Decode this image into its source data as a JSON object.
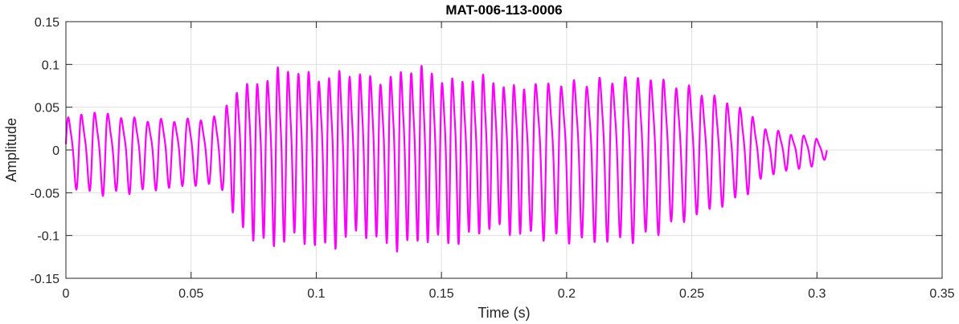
{
  "chart_data": {
    "type": "line",
    "title": "MAT-006-113-0006",
    "xlabel": "Time (s)",
    "ylabel": "Amplitude",
    "xlim": [
      0,
      0.35
    ],
    "ylim": [
      -0.15,
      0.15
    ],
    "grid": true,
    "x_ticks": [
      0,
      0.05,
      0.1,
      0.15,
      0.2,
      0.25,
      0.3,
      0.35
    ],
    "x_tick_labels": [
      "0",
      "0.05",
      "0.1",
      "0.15",
      "0.2",
      "0.25",
      "0.3",
      "0.35"
    ],
    "y_ticks": [
      -0.15,
      -0.1,
      -0.05,
      0,
      0.05,
      0.1,
      0.15
    ],
    "y_tick_labels": [
      "-0.15",
      "-0.1",
      "-0.05",
      "0",
      "0.05",
      "0.1",
      "0.15"
    ],
    "series": [
      {
        "color": "#ff00ff",
        "duration": 0.304,
        "envelope": [
          [
            0.0,
            0.045
          ],
          [
            0.01,
            0.055
          ],
          [
            0.03,
            0.048
          ],
          [
            0.055,
            0.045
          ],
          [
            0.063,
            0.05
          ],
          [
            0.066,
            0.085
          ],
          [
            0.075,
            0.105
          ],
          [
            0.085,
            0.115
          ],
          [
            0.1,
            0.115
          ],
          [
            0.12,
            0.108
          ],
          [
            0.14,
            0.118
          ],
          [
            0.16,
            0.105
          ],
          [
            0.18,
            0.098
          ],
          [
            0.2,
            0.105
          ],
          [
            0.215,
            0.11
          ],
          [
            0.23,
            0.112
          ],
          [
            0.25,
            0.088
          ],
          [
            0.27,
            0.06
          ],
          [
            0.28,
            0.03
          ],
          [
            0.3,
            0.018
          ],
          [
            0.304,
            0.01
          ]
        ],
        "segments": [
          {
            "start": 0.0,
            "end": 0.063,
            "period": 0.0053
          },
          {
            "start": 0.063,
            "end": 0.185,
            "period": 0.0041
          },
          {
            "start": 0.185,
            "end": 0.304,
            "period": 0.0051
          }
        ]
      }
    ]
  }
}
